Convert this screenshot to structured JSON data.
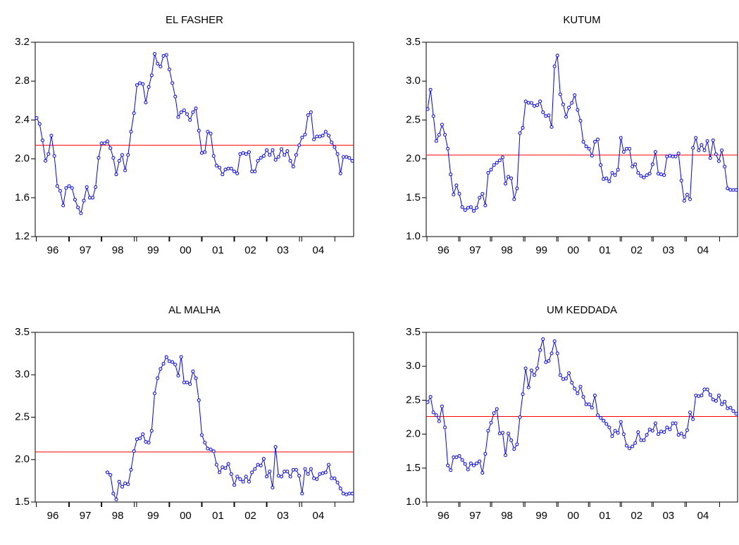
{
  "chart_data": [
    {
      "type": "line",
      "title": "EL FASHER",
      "categories": [
        null,
        null,
        null,
        null,
        null,
        null,
        "96",
        null,
        null,
        null,
        null,
        null,
        null,
        null,
        null,
        null,
        null,
        "97",
        null,
        null,
        null,
        null,
        null,
        null,
        null,
        null,
        null,
        null,
        "98",
        null,
        null,
        null,
        null,
        null,
        null,
        null,
        null,
        null,
        null,
        null,
        "99",
        null,
        null,
        null,
        null,
        null,
        null,
        null,
        null,
        null,
        null,
        "00",
        null,
        null,
        null,
        null,
        null,
        null,
        null,
        null,
        null,
        null,
        "01",
        null,
        null,
        null,
        null,
        null,
        null,
        null,
        null,
        null,
        null,
        "02",
        null,
        null,
        null,
        null,
        null,
        null,
        null,
        null,
        null,
        null,
        "03",
        null,
        null,
        null,
        null,
        null,
        null,
        null,
        null,
        null,
        null,
        null,
        "04",
        null,
        null,
        null,
        null,
        null,
        null,
        null,
        null,
        null,
        null,
        null
      ],
      "values": [
        2.42,
        2.36,
        2.19,
        1.98,
        2.05,
        2.24,
        2.03,
        1.72,
        1.67,
        1.52,
        1.7,
        1.72,
        1.7,
        1.58,
        1.5,
        1.44,
        1.57,
        1.71,
        1.6,
        1.6,
        1.71,
        2.01,
        2.16,
        2.16,
        2.18,
        2.11,
        2.01,
        1.84,
        1.98,
        2.04,
        1.88,
        2.04,
        2.28,
        2.47,
        2.76,
        2.78,
        2.77,
        2.58,
        2.74,
        2.86,
        3.08,
        2.98,
        2.95,
        3.06,
        3.07,
        2.92,
        2.78,
        2.64,
        2.43,
        2.48,
        2.5,
        2.46,
        2.4,
        2.48,
        2.52,
        2.29,
        2.06,
        2.07,
        2.28,
        2.26,
        2.03,
        1.93,
        1.91,
        1.84,
        1.89,
        1.9,
        1.9,
        1.87,
        1.85,
        2.05,
        2.06,
        2.05,
        2.07,
        1.87,
        1.87,
        1.98,
        2.01,
        2.03,
        2.09,
        2.04,
        2.09,
        1.99,
        2.02,
        2.1,
        2.04,
        2.08,
        1.98,
        1.92,
        2.04,
        2.14,
        2.22,
        2.25,
        2.45,
        2.48,
        2.2,
        2.23,
        2.23,
        2.24,
        2.28,
        2.24,
        2.17,
        2.12,
        2.05,
        1.85,
        2.02,
        2.02,
        2.01,
        1.98
      ],
      "color": "#0000ff",
      "reference_line": 2.14,
      "reference_color": "#ff0000",
      "ylim": [
        1.2,
        3.2
      ],
      "yticks": [
        1.2,
        1.6,
        {
          "value": 2.0,
          "label": "2.0"
        },
        2.4,
        2.8,
        3.2
      ]
    },
    {
      "type": "line",
      "title": "KUTUM",
      "categories": [
        null,
        null,
        null,
        null,
        null,
        null,
        "96",
        null,
        null,
        null,
        null,
        null,
        null,
        null,
        null,
        null,
        null,
        "97",
        null,
        null,
        null,
        null,
        null,
        null,
        null,
        null,
        null,
        null,
        "98",
        null,
        null,
        null,
        null,
        null,
        null,
        null,
        null,
        null,
        null,
        null,
        "99",
        null,
        null,
        null,
        null,
        null,
        null,
        null,
        null,
        null,
        null,
        "00",
        null,
        null,
        null,
        null,
        null,
        null,
        null,
        null,
        null,
        null,
        "01",
        null,
        null,
        null,
        null,
        null,
        null,
        null,
        null,
        null,
        null,
        "02",
        null,
        null,
        null,
        null,
        null,
        null,
        null,
        null,
        null,
        null,
        "03",
        null,
        null,
        null,
        null,
        null,
        null,
        null,
        null,
        null,
        null,
        null,
        "04",
        null,
        null,
        null,
        null,
        null,
        null,
        null,
        null,
        null,
        null,
        null
      ],
      "values": [
        2.64,
        2.89,
        2.55,
        2.23,
        2.31,
        2.44,
        2.31,
        2.13,
        1.8,
        1.54,
        1.66,
        1.55,
        1.38,
        1.34,
        1.37,
        1.38,
        1.33,
        1.37,
        1.5,
        1.55,
        1.4,
        1.82,
        1.86,
        1.92,
        1.95,
        1.98,
        2.02,
        1.68,
        1.77,
        1.75,
        1.48,
        1.62,
        2.33,
        2.4,
        2.74,
        2.72,
        2.72,
        2.68,
        2.69,
        2.74,
        2.6,
        2.55,
        2.56,
        2.41,
        3.19,
        3.33,
        2.83,
        2.7,
        2.54,
        2.66,
        2.72,
        2.82,
        2.63,
        2.49,
        2.22,
        2.16,
        2.13,
        2.04,
        2.22,
        2.25,
        1.92,
        1.74,
        1.75,
        1.71,
        1.82,
        1.79,
        1.86,
        2.27,
        2.09,
        2.13,
        2.13,
        1.9,
        1.93,
        1.82,
        1.78,
        1.76,
        1.79,
        1.81,
        1.93,
        2.09,
        1.81,
        1.8,
        1.79,
        2.03,
        2.04,
        2.03,
        2.03,
        2.07,
        1.72,
        1.46,
        1.54,
        1.48,
        2.14,
        2.27,
        2.11,
        2.18,
        2.11,
        2.23,
        2.01,
        2.24,
        2.06,
        1.97,
        2.11,
        1.9,
        1.62,
        1.6,
        1.6,
        1.6
      ],
      "color": "#0000ff",
      "reference_line": 2.05,
      "reference_color": "#ff0000",
      "ylim": [
        1.0,
        3.5
      ],
      "yticks": [
        {
          "value": 1.0,
          "label": "1.0"
        },
        1.5,
        {
          "value": 2.0,
          "label": "2.0"
        },
        2.5,
        {
          "value": 3.0,
          "label": "3.0"
        },
        3.5
      ]
    },
    {
      "type": "line",
      "title": "AL MALHA",
      "categories": [
        null,
        null,
        null,
        null,
        null,
        null,
        "96",
        null,
        null,
        null,
        null,
        null,
        null,
        null,
        null,
        null,
        null,
        "97",
        null,
        null,
        null,
        null,
        null,
        null,
        null,
        null,
        null,
        null,
        "98",
        null,
        null,
        null,
        null,
        null,
        null,
        null,
        null,
        null,
        null,
        null,
        "99",
        null,
        null,
        null,
        null,
        null,
        null,
        null,
        null,
        null,
        null,
        "00",
        null,
        null,
        null,
        null,
        null,
        null,
        null,
        null,
        null,
        null,
        "01",
        null,
        null,
        null,
        null,
        null,
        null,
        null,
        null,
        null,
        null,
        "02",
        null,
        null,
        null,
        null,
        null,
        null,
        null,
        null,
        null,
        null,
        "03",
        null,
        null,
        null,
        null,
        null,
        null,
        null,
        null,
        null,
        null,
        null,
        "04",
        null,
        null,
        null,
        null,
        null,
        null,
        null,
        null,
        null,
        null,
        null
      ],
      "values": [
        null,
        null,
        null,
        null,
        null,
        null,
        null,
        null,
        null,
        null,
        null,
        null,
        null,
        null,
        null,
        null,
        null,
        null,
        null,
        null,
        null,
        null,
        null,
        null,
        1.85,
        1.82,
        1.6,
        1.53,
        1.74,
        1.68,
        1.72,
        1.71,
        1.88,
        2.1,
        2.24,
        2.25,
        2.3,
        2.21,
        2.2,
        2.34,
        2.78,
        2.96,
        3.07,
        3.13,
        3.21,
        3.16,
        3.15,
        3.12,
        2.99,
        3.21,
        2.91,
        2.91,
        2.89,
        3.04,
        2.96,
        2.7,
        2.29,
        2.2,
        2.13,
        2.12,
        2.1,
        1.94,
        1.85,
        1.91,
        1.9,
        1.95,
        1.83,
        1.7,
        1.8,
        1.77,
        1.74,
        1.8,
        1.74,
        1.85,
        1.89,
        1.94,
        1.93,
        2.01,
        1.8,
        1.86,
        1.67,
        2.15,
        1.81,
        1.8,
        1.86,
        1.86,
        1.8,
        1.88,
        1.88,
        1.81,
        1.6,
        1.89,
        1.83,
        1.89,
        1.78,
        1.77,
        1.83,
        1.84,
        1.85,
        1.94,
        1.78,
        1.78,
        1.73,
        1.66,
        1.6,
        1.59,
        1.6,
        1.6
      ],
      "color": "#0000ff",
      "reference_line": 2.09,
      "reference_color": "#ff0000",
      "ylim": [
        1.5,
        3.5
      ],
      "yticks": [
        1.5,
        {
          "value": 2.0,
          "label": "2.0"
        },
        2.5,
        {
          "value": 3.0,
          "label": "3.0"
        },
        3.5
      ]
    },
    {
      "type": "line",
      "title": "UM KEDDADA",
      "categories": [
        null,
        null,
        null,
        null,
        null,
        null,
        "96",
        null,
        null,
        null,
        null,
        null,
        null,
        null,
        null,
        null,
        null,
        "97",
        null,
        null,
        null,
        null,
        null,
        null,
        null,
        null,
        null,
        null,
        "98",
        null,
        null,
        null,
        null,
        null,
        null,
        null,
        null,
        null,
        null,
        null,
        "99",
        null,
        null,
        null,
        null,
        null,
        null,
        null,
        null,
        null,
        null,
        "00",
        null,
        null,
        null,
        null,
        null,
        null,
        null,
        null,
        null,
        null,
        "01",
        null,
        null,
        null,
        null,
        null,
        null,
        null,
        null,
        null,
        null,
        "02",
        null,
        null,
        null,
        null,
        null,
        null,
        null,
        null,
        null,
        null,
        "03",
        null,
        null,
        null,
        null,
        null,
        null,
        null,
        null,
        null,
        null,
        null,
        "04",
        null,
        null,
        null,
        null,
        null,
        null,
        null,
        null,
        null,
        null,
        null
      ],
      "values": [
        2.47,
        2.55,
        2.32,
        2.28,
        2.19,
        2.41,
        2.1,
        1.54,
        1.47,
        1.66,
        1.66,
        1.68,
        1.62,
        1.56,
        1.48,
        1.57,
        1.54,
        1.57,
        1.6,
        1.43,
        1.71,
        2.05,
        2.17,
        2.31,
        2.37,
        2.01,
        2.02,
        1.69,
        2.01,
        1.91,
        1.78,
        1.85,
        2.25,
        2.59,
        2.97,
        2.69,
        2.94,
        2.87,
        2.97,
        3.24,
        3.4,
        3.06,
        3.08,
        3.19,
        3.37,
        3.19,
        2.87,
        2.81,
        2.82,
        2.9,
        2.76,
        2.67,
        2.6,
        2.7,
        2.55,
        2.44,
        2.44,
        2.39,
        2.57,
        2.28,
        2.24,
        2.2,
        2.15,
        2.1,
        1.97,
        2.05,
        2.02,
        2.18,
        2.0,
        1.83,
        1.79,
        1.82,
        1.87,
        2.03,
        1.91,
        1.91,
        1.99,
        2.07,
        2.05,
        2.16,
        2.0,
        2.04,
        2.03,
        2.1,
        2.07,
        2.16,
        2.16,
        1.99,
        2.01,
        1.96,
        2.06,
        2.32,
        2.22,
        2.57,
        2.56,
        2.57,
        2.66,
        2.66,
        2.58,
        2.51,
        2.49,
        2.57,
        2.44,
        2.48,
        2.38,
        2.39,
        2.34,
        2.3
      ],
      "color": "#0000ff",
      "reference_line": 2.26,
      "reference_color": "#ff0000",
      "ylim": [
        1.0,
        3.5
      ],
      "yticks": [
        {
          "value": 1.0,
          "label": "1.0"
        },
        1.5,
        {
          "value": 2.0,
          "label": "2.0"
        },
        2.5,
        {
          "value": 3.0,
          "label": "3.0"
        },
        3.5
      ]
    }
  ]
}
